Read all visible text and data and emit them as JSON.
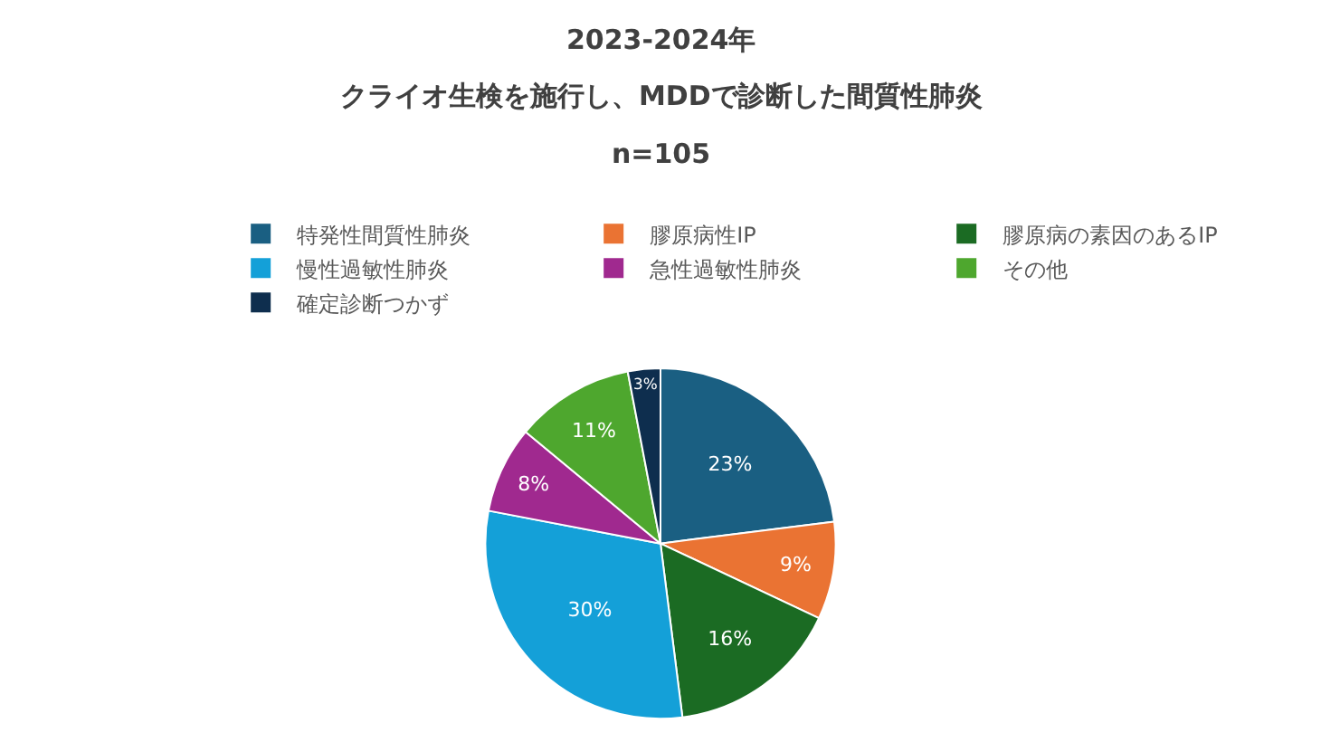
{
  "chart_data": {
    "type": "pie",
    "title": "2023-2024年",
    "subtitle": "クライオ生検を施行し、MDDで診断した間質性肺炎",
    "annotations": [
      "n=105"
    ],
    "categories": [
      "特発性間質性肺炎",
      "膠原病性IP",
      "膠原病の素因のあるIP",
      "慢性過敏性肺炎",
      "急性過敏性肺炎",
      "その他",
      "確定診断つかず"
    ],
    "values": [
      23,
      9,
      16,
      30,
      8,
      11,
      3
    ],
    "value_labels": [
      "23%",
      "9%",
      "16%",
      "30%",
      "8%",
      "11%",
      "3%"
    ],
    "colors": [
      "#1a5f82",
      "#ea7333",
      "#1b6b23",
      "#14a0d8",
      "#a0298f",
      "#4ea72e",
      "#0e2e4e"
    ],
    "legend": "top"
  }
}
